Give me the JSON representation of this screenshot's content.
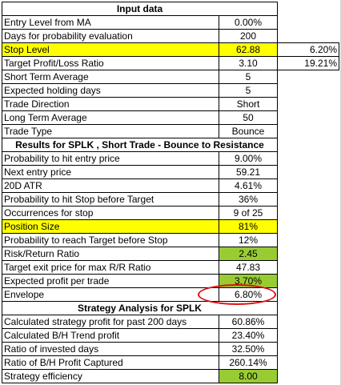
{
  "input_header": "Input data",
  "input_rows": [
    {
      "label": "Entry Level from MA",
      "value": "0.00%",
      "extra": ""
    },
    {
      "label": "Days for probability evaluation",
      "value": "200",
      "extra": ""
    },
    {
      "label": "Stop Level",
      "value": "62.88",
      "extra": "6.20%"
    },
    {
      "label": "Target Profit/Loss Ratio",
      "value": "3.10",
      "extra": "19.21%"
    },
    {
      "label": "Short Term Average",
      "value": "5",
      "extra": ""
    },
    {
      "label": "Expected holding days",
      "value": "5",
      "extra": ""
    },
    {
      "label": "Trade Direction",
      "value": "Short",
      "extra": ""
    },
    {
      "label": "Long Term Average",
      "value": "50",
      "extra": ""
    },
    {
      "label": "Trade Type",
      "value": "Bounce",
      "extra": ""
    }
  ],
  "results_header": "Results for SPLK , Short Trade - Bounce to Resistance",
  "results_rows": [
    {
      "label": "Probability to hit entry price",
      "value": "9.00%"
    },
    {
      "label": "Next entry price",
      "value": "59.21"
    },
    {
      "label": "20D ATR",
      "value": "4.61%"
    },
    {
      "label": "Probability to hit Stop before Target",
      "value": "36%"
    },
    {
      "label": "Occurrences for stop",
      "value": "9 of 25"
    },
    {
      "label": "Position Size",
      "value": "81%"
    },
    {
      "label": "Probability to reach Target before Stop",
      "value": "12%"
    },
    {
      "label": "Risk/Return Ratio",
      "value": "2.45"
    },
    {
      "label": "Target exit price for max R/R Ratio",
      "value": "47.83"
    },
    {
      "label": "Expected profit per trade",
      "value": "3.70%"
    },
    {
      "label": "Envelope",
      "value": "6.80%"
    }
  ],
  "strategy_header": "Strategy Analysis for SPLK",
  "strategy_rows": [
    {
      "label": "Calculated strategy profit for past 200 days",
      "value": "60.86%"
    },
    {
      "label": "Calculated B/H Trend profit",
      "value": "23.40%"
    },
    {
      "label": "Ratio of invested days",
      "value": "32.50%"
    },
    {
      "label": "Ratio of B/H Profit Captured",
      "value": "260.14%"
    },
    {
      "label": "Strategy efficiency",
      "value": "8.00"
    }
  ],
  "colors": {
    "highlight_yellow": "#ffff00",
    "highlight_green": "#99cc33",
    "annotation_red": "#e01010"
  }
}
